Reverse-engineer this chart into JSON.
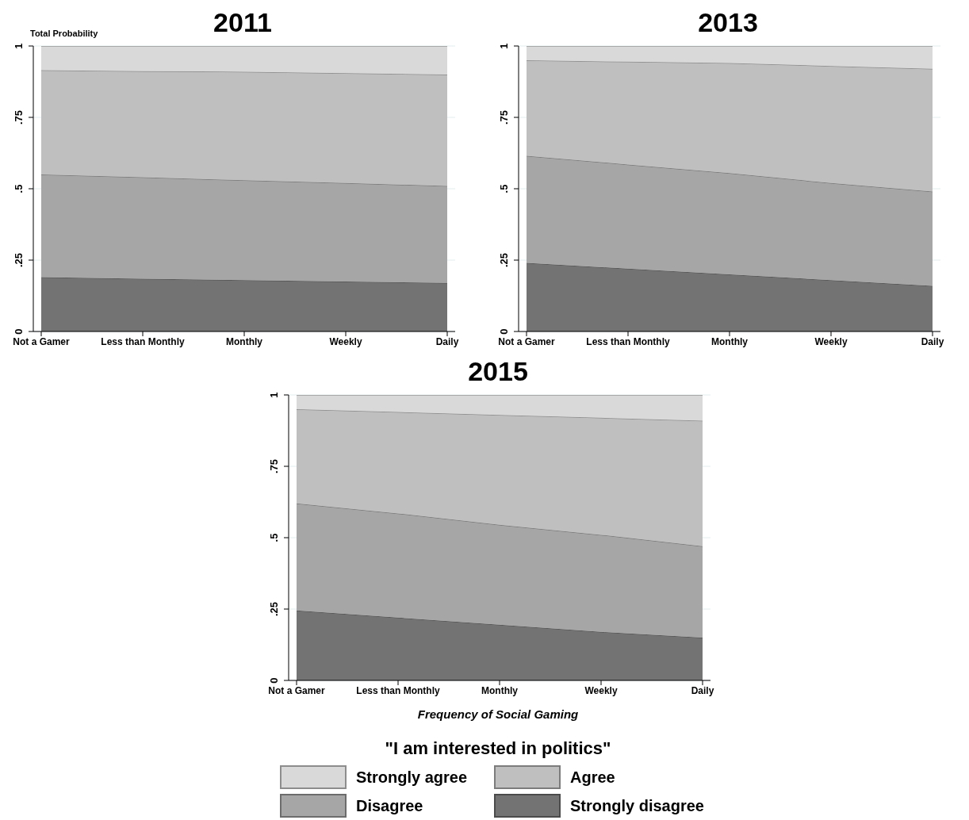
{
  "chart_data": [
    {
      "type": "area",
      "title": "2011",
      "ylabel": "Total Probability",
      "stacked": true,
      "grid": "y",
      "categories": [
        "Not a Gamer",
        "Less than Monthly",
        "Monthly",
        "Weekly",
        "Daily"
      ],
      "ylim": [
        0,
        1
      ],
      "yticks": [
        {
          "value": 0,
          "label": "0"
        },
        {
          "value": 0.25,
          "label": ".25"
        },
        {
          "value": 0.5,
          "label": ".5"
        },
        {
          "value": 0.75,
          "label": ".75"
        },
        {
          "value": 1,
          "label": "1"
        }
      ],
      "series": [
        {
          "color": "#737373",
          "values": [
            0.19,
            0.185,
            0.18,
            0.175,
            0.17
          ]
        },
        {
          "color": "#a6a6a6",
          "values": [
            0.36,
            0.355,
            0.35,
            0.345,
            0.34
          ]
        },
        {
          "color": "#bfbfbf",
          "values": [
            0.365,
            0.372,
            0.38,
            0.385,
            0.39
          ]
        },
        {
          "color": "#d9d9d9",
          "values": [
            0.085,
            0.088,
            0.09,
            0.095,
            0.1
          ]
        }
      ]
    },
    {
      "type": "area",
      "title": "2013",
      "stacked": true,
      "grid": "y",
      "categories": [
        "Not a Gamer",
        "Less than Monthly",
        "Monthly",
        "Weekly",
        "Daily"
      ],
      "ylim": [
        0,
        1
      ],
      "yticks": [
        {
          "value": 0,
          "label": "0"
        },
        {
          "value": 0.25,
          "label": ".25"
        },
        {
          "value": 0.5,
          "label": ".5"
        },
        {
          "value": 0.75,
          "label": ".75"
        },
        {
          "value": 1,
          "label": "1"
        }
      ],
      "series": [
        {
          "color": "#737373",
          "values": [
            0.24,
            0.22,
            0.2,
            0.18,
            0.16
          ]
        },
        {
          "color": "#a6a6a6",
          "values": [
            0.375,
            0.365,
            0.355,
            0.34,
            0.33
          ]
        },
        {
          "color": "#bfbfbf",
          "values": [
            0.335,
            0.36,
            0.385,
            0.41,
            0.43
          ]
        },
        {
          "color": "#d9d9d9",
          "values": [
            0.05,
            0.055,
            0.06,
            0.07,
            0.08
          ]
        }
      ]
    },
    {
      "type": "area",
      "title": "2015",
      "xlabel": "Frequency of Social Gaming",
      "legend_title": "\"I am interested in politics\"",
      "legend": "bottom",
      "stacked": true,
      "grid": "y",
      "categories": [
        "Not a Gamer",
        "Less than Monthly",
        "Monthly",
        "Weekly",
        "Daily"
      ],
      "ylim": [
        0,
        1
      ],
      "yticks": [
        {
          "value": 0,
          "label": "0"
        },
        {
          "value": 0.25,
          "label": ".25"
        },
        {
          "value": 0.5,
          "label": ".5"
        },
        {
          "value": 0.75,
          "label": ".75"
        },
        {
          "value": 1,
          "label": "1"
        }
      ],
      "series": [
        {
          "name": "Strongly disagree",
          "color": "#737373",
          "values": [
            0.245,
            0.22,
            0.195,
            0.17,
            0.15
          ]
        },
        {
          "name": "Disagree",
          "color": "#a6a6a6",
          "values": [
            0.375,
            0.365,
            0.35,
            0.34,
            0.32
          ]
        },
        {
          "name": "Agree",
          "color": "#bfbfbf",
          "values": [
            0.33,
            0.355,
            0.385,
            0.41,
            0.44
          ]
        },
        {
          "name": "Strongly agree",
          "color": "#d9d9d9",
          "values": [
            0.05,
            0.06,
            0.07,
            0.08,
            0.09
          ]
        }
      ]
    }
  ]
}
